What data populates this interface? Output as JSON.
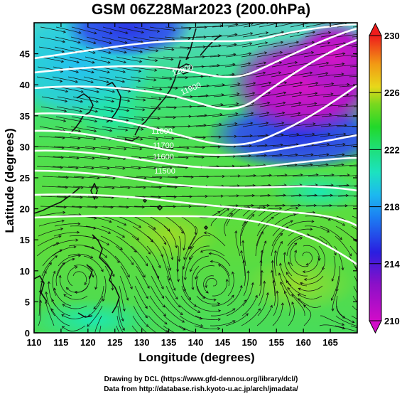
{
  "title": "GSM 06Z28Mar2023 (200.0hPa)",
  "x_axis": {
    "label": "Longitude (degrees)",
    "range": [
      110,
      170
    ],
    "ticks": [
      "110",
      "115",
      "120",
      "125",
      "130",
      "135",
      "140",
      "145",
      "150",
      "155",
      "160",
      "165"
    ]
  },
  "y_axis": {
    "label": "Latitude  (degrees)",
    "range": [
      0,
      50
    ],
    "ticks": [
      "0",
      "5",
      "10",
      "15",
      "20",
      "25",
      "30",
      "35",
      "40",
      "45"
    ]
  },
  "colorbar": {
    "range": [
      210,
      230
    ],
    "labels": [
      "210",
      "214",
      "218",
      "222",
      "226",
      "230"
    ]
  },
  "contour_labels": [
    "12000",
    "11900",
    "11800",
    "11700",
    "11600",
    "11500"
  ],
  "credits": {
    "line1": "Drawing by DCL (https://www.gfd-dennou.org/library/dcl/)",
    "line2": "Data from http://database.rish.kyoto-u.ac.jp/arch/jmadata/"
  }
}
